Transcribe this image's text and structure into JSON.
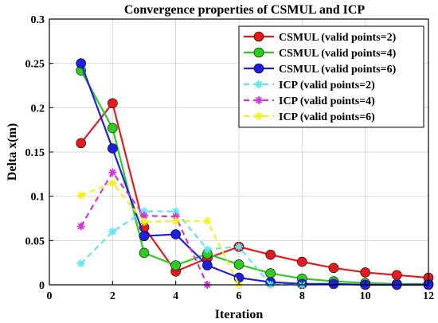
{
  "chart_data": {
    "type": "line",
    "title": "Convergence properties of CSMUL and ICP",
    "xlabel": "Iteration",
    "ylabel": "Delta x(m)",
    "xlim": [
      0,
      12
    ],
    "ylim": [
      0,
      0.3
    ],
    "xticks": [
      0,
      2,
      4,
      6,
      8,
      10,
      12
    ],
    "yticks": [
      0,
      0.05,
      0.1,
      0.15,
      0.2,
      0.25,
      0.3
    ],
    "xtick_labels": [
      "0",
      "2",
      "4",
      "6",
      "8",
      "10",
      "12"
    ],
    "ytick_labels": [
      "0",
      "0.05",
      "0.1",
      "0.15",
      "0.2",
      "0.25",
      "0.3"
    ],
    "grid": true,
    "legend_position": "top-right",
    "series": [
      {
        "name": "CSMUL (valid points=2)",
        "color": "#e41a1c",
        "style": "solid",
        "marker": "circle",
        "x": [
          1,
          2,
          3,
          4,
          5,
          6,
          7,
          8,
          9,
          10,
          11,
          12
        ],
        "y": [
          0.16,
          0.205,
          0.065,
          0.015,
          0.03,
          0.043,
          0.034,
          0.026,
          0.019,
          0.014,
          0.011,
          0.008
        ]
      },
      {
        "name": "CSMUL (valid points=4)",
        "color": "#2ecc1f",
        "style": "solid",
        "marker": "circle",
        "x": [
          1,
          2,
          3,
          4,
          5,
          6,
          7,
          8,
          9,
          10,
          11,
          12
        ],
        "y": [
          0.242,
          0.177,
          0.036,
          0.022,
          0.035,
          0.023,
          0.013,
          0.007,
          0.004,
          0.002,
          0.001,
          0.001
        ]
      },
      {
        "name": "CSMUL (valid points=6)",
        "color": "#1f1fe0",
        "style": "solid",
        "marker": "circle",
        "x": [
          1,
          2,
          3,
          4,
          5,
          6,
          7,
          8,
          9,
          10,
          11,
          12
        ],
        "y": [
          0.25,
          0.154,
          0.055,
          0.057,
          0.022,
          0.008,
          0.003,
          0.001,
          0.001,
          0.0,
          0.0,
          0.0
        ]
      },
      {
        "name": "ICP (valid points=2)",
        "color": "#5fe6f0",
        "style": "dashed",
        "marker": "asterisk",
        "x": [
          1,
          2,
          3,
          4,
          5,
          6,
          7,
          8
        ],
        "y": [
          0.024,
          0.06,
          0.083,
          0.083,
          0.04,
          0.043,
          0.0,
          0.0
        ]
      },
      {
        "name": "ICP (valid points=4)",
        "color": "#d433d4",
        "style": "dashed",
        "marker": "asterisk",
        "x": [
          1,
          2,
          3,
          4,
          5
        ],
        "y": [
          0.066,
          0.127,
          0.078,
          0.077,
          0.0
        ]
      },
      {
        "name": "ICP (valid points=6)",
        "color": "#f2f21a",
        "style": "dashed",
        "marker": "asterisk",
        "x": [
          1,
          2,
          3,
          4,
          5,
          6
        ],
        "y": [
          0.101,
          0.115,
          0.071,
          0.072,
          0.072,
          0.0
        ]
      }
    ]
  }
}
